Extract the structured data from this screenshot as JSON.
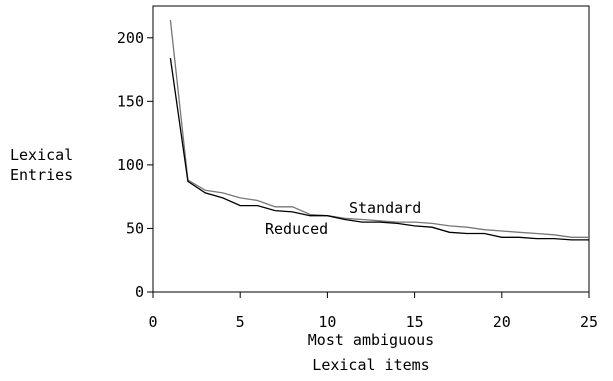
{
  "chart_data": {
    "type": "line",
    "xlabel": [
      "Most ambiguous",
      "Lexical items"
    ],
    "ylabel": [
      "Lexical",
      "Entries"
    ],
    "xlim": [
      0,
      25
    ],
    "ylim": [
      0,
      225
    ],
    "xticks": [
      0,
      5,
      10,
      15,
      20,
      25
    ],
    "yticks": [
      0,
      50,
      100,
      150,
      200
    ],
    "grid": false,
    "series": [
      {
        "name": "Standard",
        "color": "#777777",
        "x": [
          1,
          2,
          3,
          4,
          5,
          6,
          7,
          8,
          9,
          10,
          11,
          12,
          13,
          14,
          15,
          16,
          17,
          18,
          19,
          20,
          21,
          22,
          23,
          24,
          25
        ],
        "y": [
          214,
          88,
          80,
          78,
          74,
          72,
          67,
          67,
          61,
          60,
          58,
          57,
          56,
          55,
          55,
          54,
          52,
          51,
          49,
          48,
          47,
          46,
          45,
          43,
          43
        ]
      },
      {
        "name": "Reduced",
        "color": "#000000",
        "x": [
          1,
          2,
          3,
          4,
          5,
          6,
          7,
          8,
          9,
          10,
          11,
          12,
          13,
          14,
          15,
          16,
          17,
          18,
          19,
          20,
          21,
          22,
          23,
          24,
          25
        ],
        "y": [
          184,
          87,
          78,
          74,
          68,
          68,
          64,
          63,
          60,
          60,
          57,
          55,
          55,
          54,
          52,
          51,
          47,
          46,
          46,
          43,
          43,
          42,
          42,
          41,
          41
        ]
      }
    ]
  }
}
